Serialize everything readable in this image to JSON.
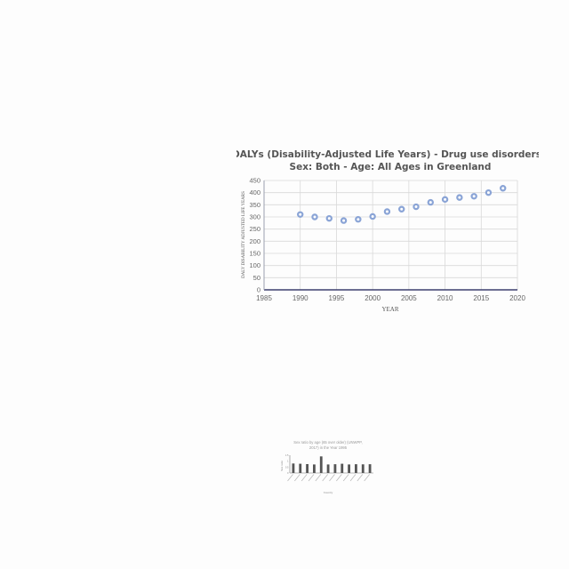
{
  "chart_data": [
    {
      "type": "scatter",
      "title_lines": [
        "DALYs (Disability-Adjusted Life Years) - Drug use disorders -",
        "Sex: Both - Age: All Ages in Greenland"
      ],
      "xlabel": "YEAR",
      "ylabel": "DALY DISABILITY ADJUSTED LIFE YEARS",
      "xlim": [
        1985,
        2020
      ],
      "ylim": [
        0,
        450
      ],
      "xticks": [
        "1985",
        "1990",
        "1995",
        "2000",
        "2005",
        "2010",
        "2015",
        "2020"
      ],
      "yticks": [
        "0",
        "50",
        "100",
        "150",
        "200",
        "250",
        "300",
        "350",
        "400",
        "450"
      ],
      "grid": true,
      "marker_color": "#8aa4d6",
      "points": [
        {
          "x": 1990,
          "y": 310
        },
        {
          "x": 1992,
          "y": 300
        },
        {
          "x": 1994,
          "y": 294
        },
        {
          "x": 1996,
          "y": 285
        },
        {
          "x": 1998,
          "y": 290
        },
        {
          "x": 2000,
          "y": 302
        },
        {
          "x": 2002,
          "y": 322
        },
        {
          "x": 2004,
          "y": 332
        },
        {
          "x": 2006,
          "y": 342
        },
        {
          "x": 2008,
          "y": 360
        },
        {
          "x": 2010,
          "y": 372
        },
        {
          "x": 2012,
          "y": 380
        },
        {
          "x": 2014,
          "y": 385
        },
        {
          "x": 2016,
          "y": 400
        },
        {
          "x": 2018,
          "y": 418
        }
      ]
    },
    {
      "type": "bar",
      "title_lines": [
        "Sex ratio by age (65 over older) (UNWPP,",
        "2017) in the Year 1995"
      ],
      "xlabel": "Country",
      "ylabel": "Sex ratio",
      "ylim": [
        0,
        1.5
      ],
      "yticks": [
        "0",
        "0.5",
        "1",
        "1.5"
      ],
      "bar_color": "#555555",
      "categories": [
        "",
        "",
        "",
        "",
        "",
        "",
        "",
        "",
        "",
        "",
        "",
        ""
      ],
      "values": [
        0.8,
        0.78,
        0.75,
        0.72,
        1.4,
        0.72,
        0.74,
        0.78,
        0.72,
        0.74,
        0.73,
        0.74
      ]
    }
  ]
}
